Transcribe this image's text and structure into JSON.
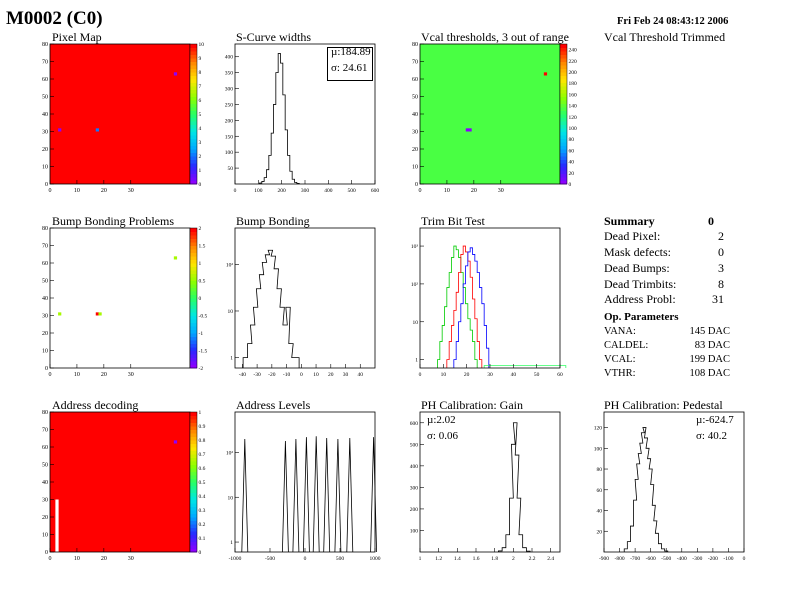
{
  "header": {
    "module": "M0002 (C0)",
    "timestamp": "Fri Feb 24 08:43:12 2006"
  },
  "titles": {
    "pixel_map": "Pixel Map",
    "scurve": "S-Curve widths",
    "vcal": "Vcal thresholds, 3 out of range",
    "vcal_trimmed": "Vcal Threshold Trimmed",
    "bump_problems": "Bump Bonding Problems",
    "bump": "Bump Bonding",
    "trim": "Trim Bit Test",
    "address_decoding": "Address decoding",
    "address_levels": "Address Levels",
    "ph_gain": "PH Calibration: Gain",
    "ph_ped": "PH Calibration: Pedestal"
  },
  "stats": {
    "scurve_mu": "µ:184.89",
    "scurve_sigma": "σ: 24.61",
    "gain_mu": "µ:2.02",
    "gain_sigma": "σ: 0.06",
    "ped_mu": "µ:-624.7",
    "ped_sigma": "σ: 40.2"
  },
  "summary": {
    "title": "Summary",
    "total": "0",
    "rows": [
      {
        "label": "Dead Pixel:",
        "value": "2"
      },
      {
        "label": "Mask defects:",
        "value": "0"
      },
      {
        "label": "Dead Bumps:",
        "value": "3"
      },
      {
        "label": "Dead Trimbits:",
        "value": "8"
      },
      {
        "label": "Address Probl:",
        "value": "31"
      }
    ]
  },
  "op_params": {
    "title": "Op. Parameters",
    "rows": [
      {
        "label": "VANA:",
        "value": "145 DAC"
      },
      {
        "label": "CALDEL:",
        "value": "83 DAC"
      },
      {
        "label": "VCAL:",
        "value": "199 DAC"
      },
      {
        "label": "VTHR:",
        "value": "108 DAC"
      }
    ]
  },
  "colors": {
    "map_red": "#ff0000",
    "map_green": "#33ff66",
    "trim_red": "#ff0000",
    "trim_green": "#00cc00",
    "trim_blue": "#0000ff"
  },
  "chart_data": [
    {
      "id": "pixel_map",
      "type": "heatmap",
      "title": "Pixel Map",
      "x_ticks": [
        "0",
        "10",
        "20",
        "30"
      ],
      "y_ticks": [
        "0",
        "10",
        "20",
        "30",
        "40",
        "50",
        "60",
        "70",
        "80"
      ],
      "xlim": [
        0,
        52
      ],
      "ylim": [
        0,
        80
      ],
      "z_ticks": [
        "0",
        "1",
        "2",
        "3",
        "4",
        "5",
        "6",
        "7",
        "8",
        "9",
        "10"
      ],
      "zlim": [
        0,
        10
      ],
      "fill_value": 10,
      "outliers": [
        {
          "x": 46,
          "y": 62,
          "z": 0
        },
        {
          "x": 17,
          "y": 30,
          "z": 2
        },
        {
          "x": 3,
          "y": 30,
          "z": 0
        }
      ]
    },
    {
      "id": "scurve",
      "type": "bar",
      "title": "S-Curve widths",
      "x_ticks": [
        "0",
        "100",
        "200",
        "300",
        "400",
        "500",
        "600"
      ],
      "y_ticks": [
        "50",
        "100",
        "150",
        "200",
        "250",
        "300",
        "350",
        "400"
      ],
      "xlim": [
        0,
        600
      ],
      "ylim": [
        0,
        440
      ],
      "x": [
        110,
        120,
        130,
        140,
        150,
        160,
        170,
        180,
        190,
        200,
        210,
        220,
        230,
        240,
        250,
        260,
        270
      ],
      "y": [
        3,
        8,
        20,
        45,
        90,
        160,
        250,
        350,
        410,
        380,
        280,
        170,
        90,
        40,
        15,
        5,
        2
      ]
    },
    {
      "id": "vcal",
      "type": "heatmap",
      "title": "Vcal thresholds, 3 out of range",
      "x_ticks": [
        "0",
        "10",
        "20",
        "30"
      ],
      "y_ticks": [
        "0",
        "10",
        "20",
        "30",
        "40",
        "50",
        "60",
        "70",
        "80"
      ],
      "xlim": [
        0,
        52
      ],
      "ylim": [
        0,
        80
      ],
      "z_ticks": [
        "0",
        "20",
        "40",
        "60",
        "80",
        "100",
        "120",
        "140",
        "160",
        "180",
        "200",
        "220",
        "240"
      ],
      "zlim": [
        0,
        250
      ],
      "fill_value": 135,
      "outliers": [
        {
          "x": 46,
          "y": 62,
          "z": 250
        },
        {
          "x": 17,
          "y": 30,
          "z": 0
        },
        {
          "x": 18,
          "y": 30,
          "z": 0
        }
      ]
    },
    {
      "id": "bump_problems",
      "type": "heatmap",
      "title": "Bump Bonding Problems",
      "x_ticks": [
        "0",
        "10",
        "20",
        "30"
      ],
      "y_ticks": [
        "0",
        "10",
        "20",
        "30",
        "40",
        "50",
        "60",
        "70",
        "80"
      ],
      "xlim": [
        0,
        52
      ],
      "ylim": [
        0,
        80
      ],
      "z_ticks": [
        "-2",
        "-1.5",
        "-1",
        "-0.5",
        "0",
        "0.5",
        "1",
        "1.5",
        "2"
      ],
      "zlim": [
        -2,
        2
      ],
      "fill_value": null,
      "outliers": [
        {
          "x": 46,
          "y": 62,
          "z": 0.6
        },
        {
          "x": 17,
          "y": 30,
          "z": 2
        },
        {
          "x": 18,
          "y": 30,
          "z": 0.6
        },
        {
          "x": 3,
          "y": 30,
          "z": 0.6
        }
      ]
    },
    {
      "id": "bump",
      "type": "line",
      "title": "Bump Bonding",
      "log_y": true,
      "x_ticks": [
        "-40",
        "-30",
        "-20",
        "-10",
        "0",
        "10",
        "20",
        "30",
        "40"
      ],
      "y_ticks": [
        "1",
        "10",
        "10²"
      ],
      "xlim": [
        -45,
        50
      ],
      "ylim": [
        0.6,
        600
      ],
      "x": [
        -38,
        -35,
        -33,
        -31,
        -29,
        -27,
        -25,
        -23,
        -21,
        -19,
        -17,
        -15,
        -13,
        -11,
        -9,
        -7,
        -5,
        -3
      ],
      "y": [
        1,
        2,
        5,
        12,
        30,
        60,
        110,
        160,
        200,
        150,
        80,
        30,
        12,
        5,
        12,
        2,
        1,
        1
      ]
    },
    {
      "id": "trim",
      "type": "line",
      "title": "Trim Bit Test",
      "log_y": true,
      "x_ticks": [
        "0",
        "10",
        "20",
        "30",
        "40",
        "50",
        "60"
      ],
      "y_ticks": [
        "1",
        "10",
        "10²",
        "10³"
      ],
      "xlim": [
        0,
        60
      ],
      "ylim": [
        0.6,
        3000
      ],
      "series": [
        {
          "color_key": "trim_green",
          "x": [
            8,
            9,
            10,
            11,
            12,
            13,
            14,
            15,
            16,
            17,
            18,
            19,
            20,
            21,
            22,
            23,
            24
          ],
          "y": [
            1,
            3,
            8,
            25,
            80,
            200,
            500,
            1000,
            800,
            500,
            200,
            80,
            30,
            12,
            6,
            3,
            1
          ]
        },
        {
          "color_key": "trim_red",
          "x": [
            12,
            13,
            14,
            15,
            16,
            17,
            18,
            19,
            20,
            21,
            22,
            23,
            24,
            25,
            26
          ],
          "y": [
            1,
            3,
            8,
            20,
            60,
            200,
            600,
            1000,
            700,
            400,
            150,
            40,
            12,
            3,
            1
          ]
        },
        {
          "color_key": "trim_blue",
          "x": [
            15,
            16,
            17,
            18,
            19,
            20,
            21,
            22,
            23,
            24,
            25,
            26,
            27,
            28,
            29
          ],
          "y": [
            1,
            3,
            10,
            30,
            100,
            300,
            700,
            900,
            600,
            400,
            200,
            80,
            30,
            8,
            2
          ]
        },
        {
          "color_key": "map_green",
          "x": [
            30,
            35,
            40,
            45,
            50,
            55,
            60
          ],
          "y": [
            0.7,
            0.7,
            0.7,
            0.7,
            0.7,
            0.7,
            0.7
          ]
        }
      ]
    },
    {
      "id": "address_decoding",
      "type": "heatmap",
      "title": "Address decoding",
      "x_ticks": [
        "0",
        "10",
        "20",
        "30"
      ],
      "y_ticks": [
        "0",
        "10",
        "20",
        "30",
        "40",
        "50",
        "60",
        "70",
        "80"
      ],
      "xlim": [
        0,
        52
      ],
      "ylim": [
        0,
        80
      ],
      "z_ticks": [
        "0",
        "0.1",
        "0.2",
        "0.3",
        "0.4",
        "0.5",
        "0.6",
        "0.7",
        "0.8",
        "0.9",
        "1"
      ],
      "zlim": [
        0,
        1
      ],
      "fill_value": 1,
      "outliers": [
        {
          "x": 46,
          "y": 62,
          "z": 0
        },
        {
          "x": 2,
          "y": 0,
          "z": 0,
          "h": 30
        }
      ]
    },
    {
      "id": "address_levels",
      "type": "line",
      "title": "Address Levels",
      "log_y": true,
      "x_ticks": [
        "-1000",
        "-500",
        "0",
        "500",
        "1000"
      ],
      "y_ticks": [
        "1",
        "10",
        "10²"
      ],
      "xlim": [
        -1000,
        1000
      ],
      "ylim": [
        0.6,
        800
      ],
      "peaks": [
        {
          "x": -860,
          "y": 200
        },
        {
          "x": -280,
          "y": 180
        },
        {
          "x": -130,
          "y": 200
        },
        {
          "x": 20,
          "y": 220
        },
        {
          "x": 160,
          "y": 230
        },
        {
          "x": 310,
          "y": 210
        },
        {
          "x": 470,
          "y": 200
        },
        {
          "x": 640,
          "y": 210
        },
        {
          "x": 980,
          "y": 220
        }
      ]
    },
    {
      "id": "ph_gain",
      "type": "bar",
      "title": "PH Calibration: Gain",
      "x_ticks": [
        "1",
        "1.2",
        "1.4",
        "1.6",
        "1.8",
        "2",
        "2.2",
        "2.4"
      ],
      "y_ticks": [
        "100",
        "200",
        "300",
        "400",
        "500",
        "600"
      ],
      "xlim": [
        1,
        2.5
      ],
      "ylim": [
        0,
        650
      ],
      "x": [
        1.86,
        1.9,
        1.94,
        1.98,
        2.0,
        2.02,
        2.04,
        2.06,
        2.08,
        2.12,
        2.16
      ],
      "y": [
        5,
        20,
        80,
        250,
        500,
        600,
        450,
        250,
        80,
        20,
        4
      ]
    },
    {
      "id": "ph_ped",
      "type": "bar",
      "title": "PH Calibration: Pedestal",
      "x_ticks": [
        "-900",
        "-800",
        "-700",
        "-600",
        "-500",
        "-400",
        "-300",
        "-200",
        "-100",
        "0"
      ],
      "y_ticks": [
        "20",
        "40",
        "60",
        "80",
        "100",
        "120"
      ],
      "xlim": [
        -900,
        0
      ],
      "ylim": [
        0,
        135
      ],
      "x": [
        -760,
        -740,
        -720,
        -700,
        -690,
        -680,
        -670,
        -660,
        -650,
        -640,
        -630,
        -620,
        -610,
        -600,
        -590,
        -580,
        -570,
        -560,
        -540,
        -520,
        -500
      ],
      "y": [
        3,
        10,
        25,
        50,
        70,
        85,
        95,
        105,
        115,
        120,
        110,
        100,
        90,
        80,
        65,
        45,
        30,
        18,
        8,
        3,
        1
      ]
    }
  ]
}
